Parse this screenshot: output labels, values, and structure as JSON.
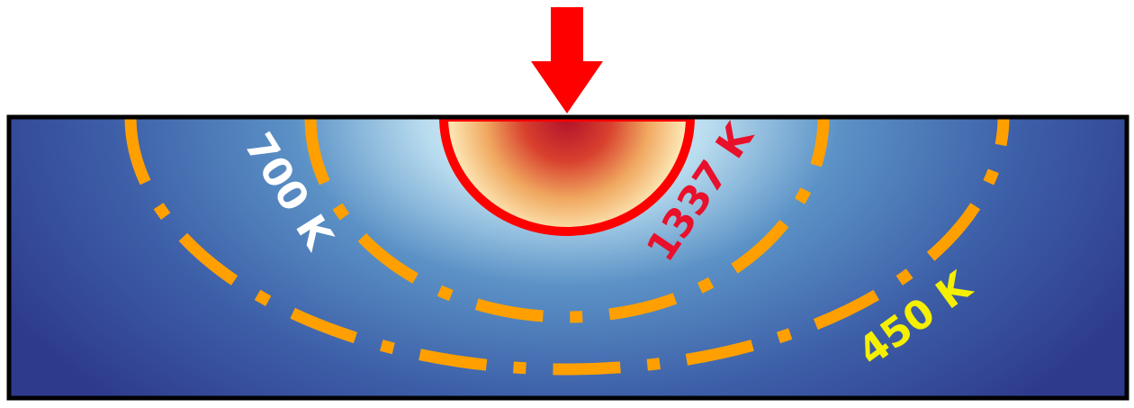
{
  "diagram": {
    "beam_arrow": {
      "color": "#ff0000",
      "meaning": "incoming heat source arrow"
    },
    "colors": {
      "frame": "#000000",
      "substrate_outer": "#2e3a8c",
      "substrate_mid": "#4a7fb8",
      "substrate_inner": "#ffffff",
      "melt_pool_center": "#b0102a",
      "melt_pool_edge": "#fff5c8",
      "isotherm_dashed": "#ffa000"
    },
    "isotherms": [
      {
        "id": "melt",
        "label": "1337 K",
        "line_style": "solid",
        "line_color": "#ff0000",
        "label_color": "#e8102a"
      },
      {
        "id": "mid",
        "label": "700 K",
        "line_style": "dash-dot",
        "line_color": "#ffa000",
        "label_color": "#ffffff"
      },
      {
        "id": "outer",
        "label": "450 K",
        "line_style": "dash-dot",
        "line_color": "#ffa000",
        "label_color": "#f4f000"
      }
    ]
  }
}
